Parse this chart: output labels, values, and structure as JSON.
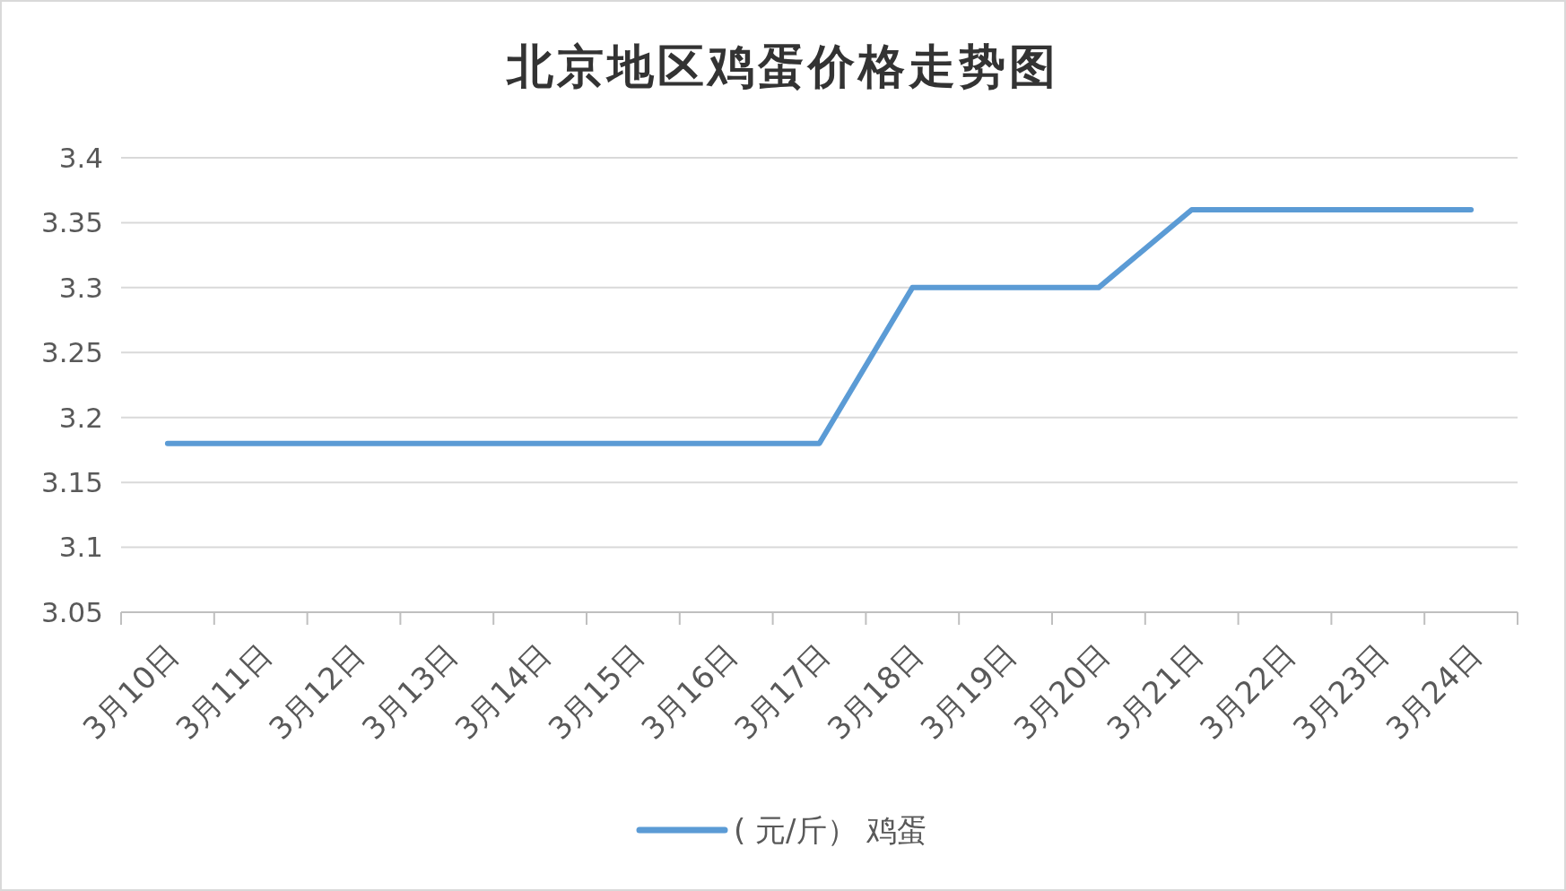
{
  "chart_data": {
    "type": "line",
    "title": "北京地区鸡蛋价格走势图",
    "categories": [
      "3月10日",
      "3月11日",
      "3月12日",
      "3月13日",
      "3月14日",
      "3月15日",
      "3月16日",
      "3月17日",
      "3月18日",
      "3月19日",
      "3月20日",
      "3月21日",
      "3月22日",
      "3月23日",
      "3月24日"
    ],
    "series": [
      {
        "name": "( 元/斤） 鸡蛋",
        "color": "#5b9bd5",
        "values": [
          3.18,
          3.18,
          3.18,
          3.18,
          3.18,
          3.18,
          3.18,
          3.18,
          3.3,
          3.3,
          3.3,
          3.36,
          3.36,
          3.36,
          3.36
        ]
      }
    ],
    "ylim": [
      3.05,
      3.4
    ],
    "yticks": [
      3.05,
      3.1,
      3.15,
      3.2,
      3.25,
      3.3,
      3.35,
      3.4
    ],
    "grid": "y",
    "legend": "bottom",
    "line_style": "solid"
  }
}
